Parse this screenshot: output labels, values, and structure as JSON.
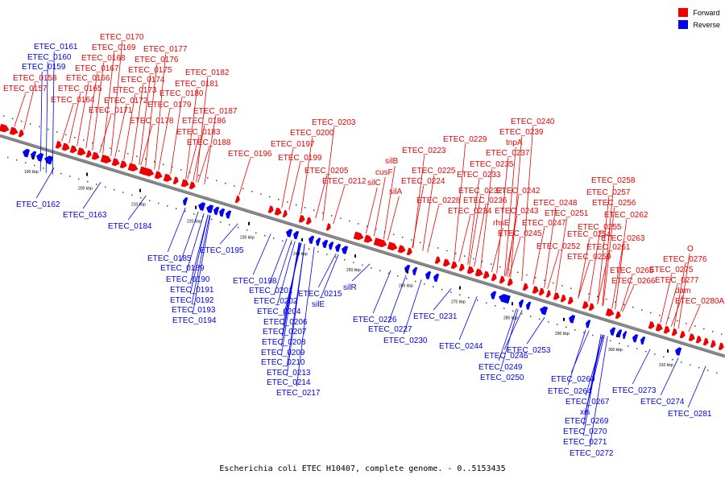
{
  "legend": {
    "items": [
      {
        "label": "Forward",
        "color": "#ee0000"
      },
      {
        "label": "Reverse",
        "color": "#0000ee"
      }
    ]
  },
  "caption": "Escherichia coli ETEC H10407, complete genome. - 0..5153435",
  "colors": {
    "forward": "#ee0000",
    "reverse": "#0000ee",
    "backbone": "#888888"
  },
  "scale_labels": [
    "190 kbp",
    "200 kbp",
    "210 kbp",
    "220 kbp",
    "230 kbp",
    "240 kbp",
    "250 kbp",
    "260 kbp",
    "270 kbp",
    "280 kbp",
    "290 kbp",
    "300 kbp",
    "310 kbp"
  ],
  "forward_labels": [
    "ETEC_0157",
    "ETEC_0158",
    "ETEC_0164",
    "ETEC_0165",
    "ETEC_0166",
    "ETEC_0167",
    "ETEC_0168",
    "ETEC_0169",
    "ETEC_0170",
    "ETEC_0171",
    "ETEC_0172",
    "ETEC_0173",
    "ETEC_0174",
    "ETEC_0175",
    "ETEC_0176",
    "ETEC_0177",
    "ETEC_0178",
    "ETEC_0179",
    "ETEC_0180",
    "ETEC_0181",
    "ETEC_0182",
    "ETEC_0183",
    "ETEC_0186",
    "ETEC_0187",
    "ETEC_0188",
    "ETEC_0196",
    "ETEC_0197",
    "ETEC_0199",
    "ETEC_0200",
    "ETEC_0203",
    "ETEC_0205",
    "ETEC_0212",
    "silC",
    "cusF",
    "silB",
    "silA",
    "ETEC_0223",
    "ETEC_0224",
    "ETEC_0225",
    "ETEC_0228",
    "ETEC_0229",
    "ETEC_0232",
    "ETEC_0233",
    "ETEC_0234",
    "ETEC_0235",
    "ETEC_0236",
    "ETEC_0237",
    "tnpA",
    "ETEC_0239",
    "ETEC_0240",
    "rhsE",
    "ETEC_0242",
    "ETEC_0243",
    "ETEC_0245",
    "ETEC_0247",
    "ETEC_0248",
    "ETEC_0251",
    "ETEC_0252",
    "ETEC_0254",
    "ETEC_0255",
    "ETEC_0256",
    "ETEC_0257",
    "ETEC_0258",
    "ETEC_0259",
    "ETEC_0261",
    "ETEC_0262",
    "ETEC_0263",
    "ETEC_0265",
    "ETEC_0266",
    "ETEC_0275",
    "ETEC_0276",
    "O",
    "ETEC_0277",
    "dam",
    "ETEC_0280A"
  ],
  "reverse_labels": [
    "ETEC_0159",
    "ETEC_0160",
    "ETEC_0161",
    "ETEC_0162",
    "ETEC_0163",
    "ETEC_0184",
    "ETEC_0185",
    "ETEC_0189",
    "ETEC_0190",
    "ETEC_0191",
    "ETEC_0192",
    "ETEC_0193",
    "ETEC_0194",
    "ETEC_0195",
    "ETEC_0198",
    "ETEC_0201",
    "ETEC_0202",
    "ETEC_0204",
    "ETEC_0206",
    "ETEC_0207",
    "ETEC_0208",
    "ETEC_0209",
    "ETEC_0210",
    "ETEC_0213",
    "ETEC_0214",
    "ETEC_0215",
    "ETEC_0217",
    "silE",
    "silR",
    "ETEC_0226",
    "ETEC_0227",
    "ETEC_0230",
    "ETEC_0231",
    "ETEC_0244",
    "ETEC_0246",
    "ETEC_0249",
    "ETEC_0250",
    "ETEC_0253",
    "ETEC_0260",
    "ETEC_0264",
    "ETEC_0267",
    "xis",
    "ETEC_0269",
    "ETEC_0270",
    "ETEC_0271",
    "ETEC_0272",
    "ETEC_0273",
    "ETEC_0274",
    "ETEC_0281"
  ]
}
